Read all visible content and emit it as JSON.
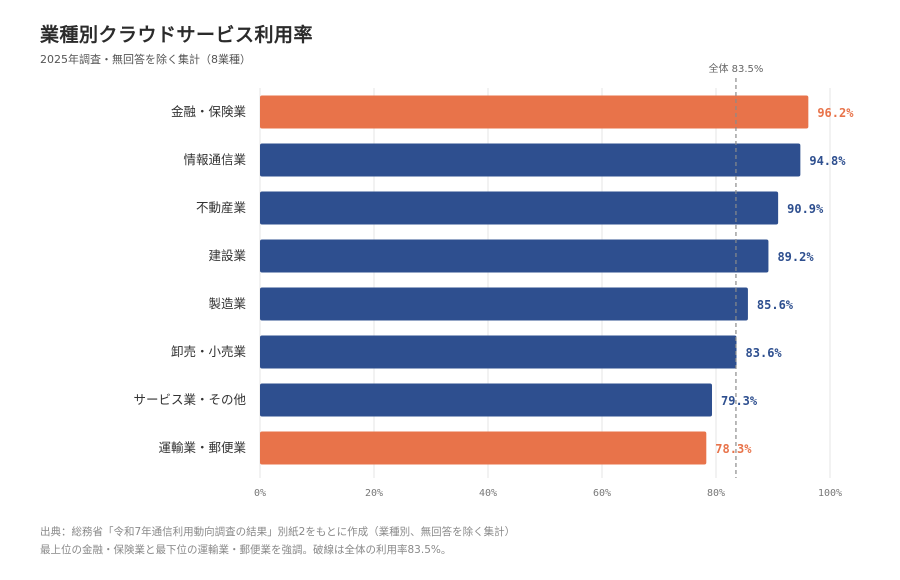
{
  "title": "業種別クラウドサービス利用率",
  "subtitle": "2025年調査・無回答を除く集計（8業種）",
  "footer": {
    "line1": "出典：総務省「令和7年通信利用動向調査の結果」別紙2をもとに作成（業種別、無回答を除く集計）",
    "line2": "最上位の金融・保険業と最下位の運輸業・郵便業を強調。破線は全体の利用率83.5%。"
  },
  "colors": {
    "accent": "#E8734A",
    "base": "#2E4F8F",
    "grid": "#e6e6e6",
    "ref": "#8a8a8a"
  },
  "chart_data": {
    "type": "bar",
    "orientation": "horizontal",
    "categories": [
      "金融・保険業",
      "情報通信業",
      "不動産業",
      "建設業",
      "製造業",
      "卸売・小売業",
      "サービス業・その他",
      "運輸業・郵便業"
    ],
    "values": [
      96.2,
      94.8,
      90.9,
      89.2,
      85.6,
      83.6,
      79.3,
      78.3
    ],
    "value_labels": [
      "96.2%",
      "94.8%",
      "90.9%",
      "89.2%",
      "85.6%",
      "83.6%",
      "79.3%",
      "78.3%"
    ],
    "highlight": [
      true,
      false,
      false,
      false,
      false,
      false,
      false,
      true
    ],
    "xlim": [
      0,
      100
    ],
    "xticks": [
      0,
      20,
      40,
      60,
      80,
      100
    ],
    "xtick_labels": [
      "0%",
      "20%",
      "40%",
      "60%",
      "80%",
      "100%"
    ],
    "reference_line": {
      "value": 83.5,
      "label": "全体 83.5%"
    },
    "grid": true
  }
}
